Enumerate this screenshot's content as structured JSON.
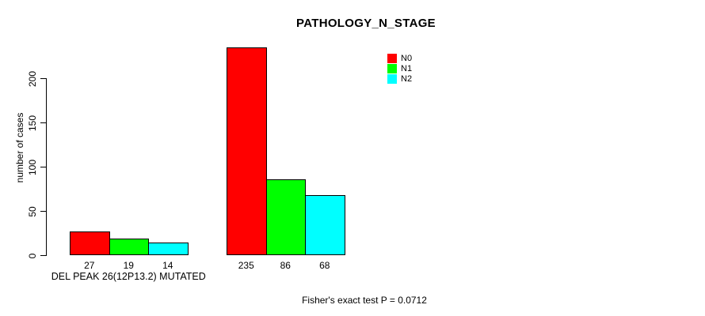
{
  "chart_data": {
    "type": "bar",
    "title": "PATHOLOGY_N_STAGE",
    "ylabel": "number of cases",
    "xlabel": "",
    "yticks": [
      0,
      50,
      100,
      150,
      200
    ],
    "ylim": [
      0,
      235
    ],
    "grid": false,
    "legend_position": "top-right",
    "series": [
      {
        "name": "N0",
        "color": "#ff0000"
      },
      {
        "name": "N1",
        "color": "#00ff00"
      },
      {
        "name": "N2",
        "color": "#00ffff"
      }
    ],
    "groups": [
      {
        "label": "DEL PEAK 26(12P13.2) MUTATED",
        "values": [
          27,
          19,
          14
        ]
      },
      {
        "label": "",
        "values": [
          235,
          86,
          68
        ]
      }
    ],
    "bar_border_color": "#000000",
    "footnote": "Fisher's exact test P = 0.0712"
  }
}
